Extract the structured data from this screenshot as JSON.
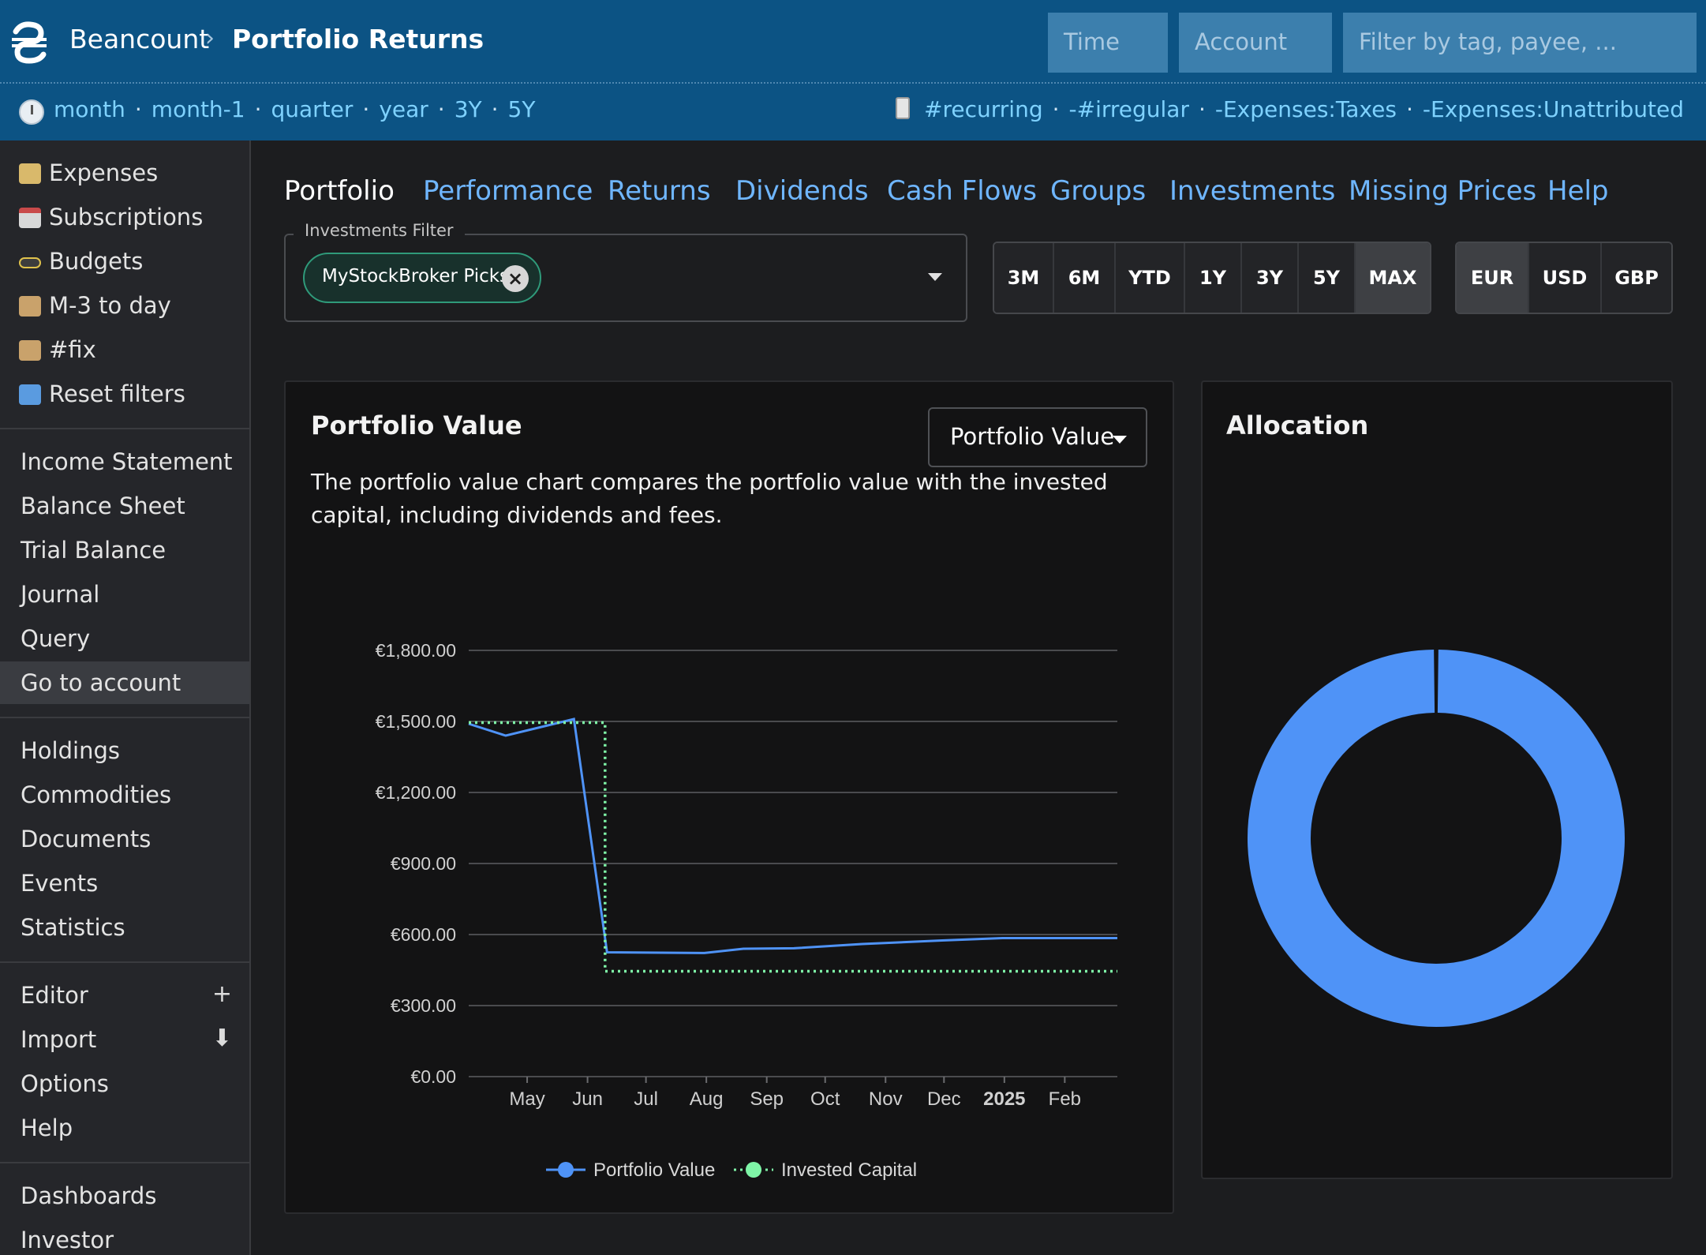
{
  "header": {
    "app": "Beancount",
    "separator": "›",
    "page": "Portfolio Returns",
    "inputs": {
      "time": "Time",
      "account": "Account",
      "filter": "Filter by tag, payee, ..."
    }
  },
  "periods": [
    "month",
    "month-1",
    "quarter",
    "year",
    "3Y",
    "5Y"
  ],
  "tag_filters": [
    "#recurring",
    "-#irregular",
    "-Expenses:Taxes",
    "-Expenses:Unattributed"
  ],
  "sidebar": {
    "favorites": [
      {
        "label": "Expenses",
        "icon": "money-wings-icon",
        "color": "#d9b96b"
      },
      {
        "label": "Subscriptions",
        "icon": "calendar-icon",
        "color": "#d8d8d8"
      },
      {
        "label": "Budgets",
        "icon": "traffic-light-icon",
        "color": "#e0c24c"
      },
      {
        "label": "M-3 to day",
        "icon": "scroll-icon",
        "color": "#c9a26b"
      },
      {
        "label": "#fix",
        "icon": "scroll-icon",
        "color": "#c9a26b"
      },
      {
        "label": "Reset filters",
        "icon": "repeat-icon",
        "color": "#5a9be0"
      }
    ],
    "reports": [
      "Income Statement",
      "Balance Sheet",
      "Trial Balance",
      "Journal",
      "Query",
      "Go to account"
    ],
    "lists": [
      "Holdings",
      "Commodities",
      "Documents",
      "Events",
      "Statistics"
    ],
    "tools": [
      {
        "label": "Editor",
        "action": "+"
      },
      {
        "label": "Import",
        "action": "⬇"
      },
      {
        "label": "Options",
        "action": ""
      },
      {
        "label": "Help",
        "action": ""
      }
    ],
    "extensions": [
      "Dashboards",
      "Investor"
    ]
  },
  "tabs": [
    "Portfolio",
    "Performance",
    "Returns",
    "Dividends",
    "Cash Flows",
    "Groups",
    "Investments",
    "Missing Prices",
    "Help"
  ],
  "investments_filter": {
    "legend": "Investments Filter",
    "chip": "MyStockBroker Picks"
  },
  "time_ranges": [
    "3M",
    "6M",
    "YTD",
    "1Y",
    "3Y",
    "5Y",
    "MAX"
  ],
  "selected_range": "MAX",
  "currencies": [
    "EUR",
    "USD",
    "GBP"
  ],
  "selected_currency": "EUR",
  "portfolio_card": {
    "title": "Portfolio Value",
    "select": "Portfolio Value",
    "description": "The portfolio value chart compares the portfolio value with the invested capital, including dividends and fees."
  },
  "allocation_card": {
    "title": "Allocation"
  },
  "chart_data": [
    {
      "type": "line",
      "title": "Portfolio Value",
      "x_ticks": [
        "May",
        "Jun",
        "Jul",
        "Aug",
        "Sep",
        "Oct",
        "Nov",
        "Dec",
        "2025",
        "Feb"
      ],
      "y_ticks": [
        "€0.00",
        "€300.00",
        "€600.00",
        "€900.00",
        "€1,200.00",
        "€1,800.00"
      ],
      "y_tick_values": [
        0,
        300,
        600,
        900,
        1200,
        1800
      ],
      "y_ticks_extra": {
        "label": "€1,500.00",
        "value": 1500
      },
      "ylim": [
        0,
        1800
      ],
      "xlim": [
        "2024-04-01",
        "2025-02-28"
      ],
      "legend_position": "bottom",
      "series": [
        {
          "name": "Portfolio Value",
          "color": "#4f93f7",
          "style": "solid",
          "points": [
            [
              "2024-04-01",
              1490
            ],
            [
              "2024-04-20",
              1440
            ],
            [
              "2024-05-25",
              1510
            ],
            [
              "2024-06-11",
              525
            ],
            [
              "2024-07-31",
              522
            ],
            [
              "2024-08-20",
              540
            ],
            [
              "2024-09-15",
              542
            ],
            [
              "2024-10-20",
              560
            ],
            [
              "2024-11-30",
              575
            ],
            [
              "2024-12-31",
              585
            ],
            [
              "2025-02-28",
              585
            ]
          ]
        },
        {
          "name": "Invested Capital",
          "color": "#7ff5a7",
          "style": "dotted",
          "points": [
            [
              "2024-04-01",
              1495
            ],
            [
              "2024-06-10",
              1495
            ],
            [
              "2024-06-10",
              445
            ],
            [
              "2025-02-28",
              445
            ]
          ]
        }
      ]
    },
    {
      "type": "pie",
      "title": "Allocation",
      "slices": [
        {
          "value": 100,
          "color": "#4f93f7"
        }
      ]
    }
  ]
}
